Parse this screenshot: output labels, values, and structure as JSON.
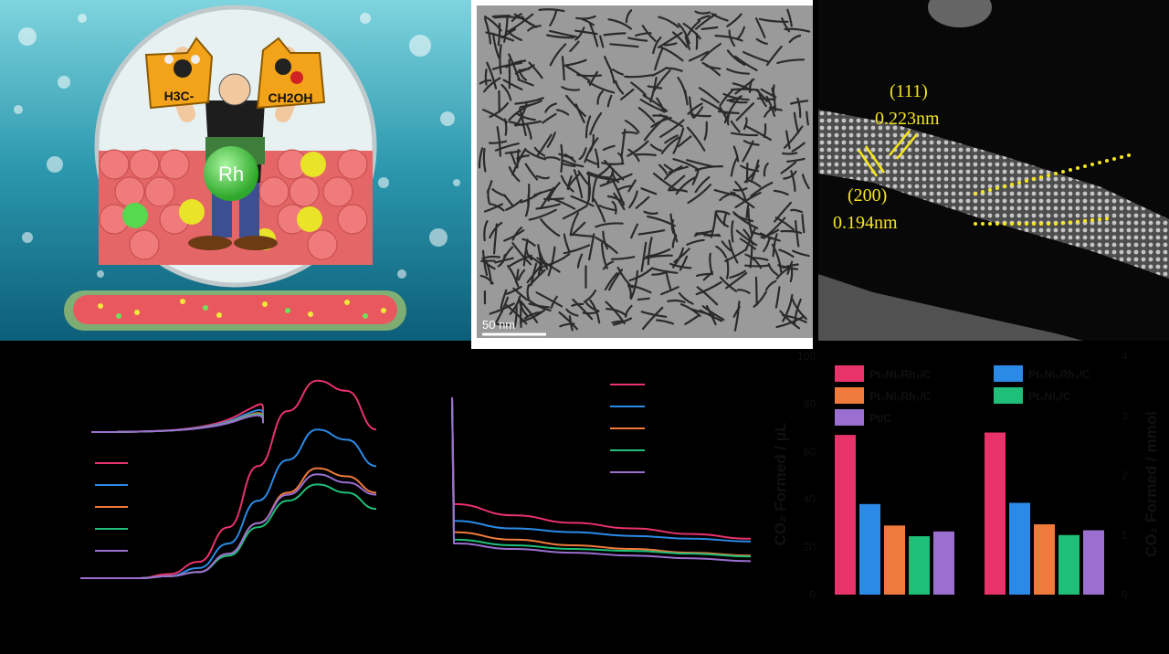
{
  "illustration": {
    "tag_left": "H3C-",
    "tag_right": "CH2OH",
    "center_label": "Rh"
  },
  "tem": {
    "scale_bar": "50 nm"
  },
  "stem": {
    "label_111": "(111)",
    "d_111": "0.223nm",
    "label_200": "(200)",
    "d_200": "0.194nm"
  },
  "colors": {
    "series1": "#e8336a",
    "series2": "#2b8ae6",
    "series3": "#f07a3c",
    "series4": "#1fbf7a",
    "series5": "#9a6fd0",
    "annotation": "#f5e61b"
  },
  "chart_data": [
    {
      "type": "line",
      "panel": "lsv",
      "series": [
        {
          "color": "series1",
          "values": [
            0,
            0,
            0,
            0.02,
            0.08,
            0.25,
            0.55,
            0.82,
            0.97,
            0.92,
            0.73
          ]
        },
        {
          "color": "series2",
          "values": [
            0,
            0,
            0,
            0.01,
            0.05,
            0.17,
            0.38,
            0.58,
            0.73,
            0.68,
            0.55
          ]
        },
        {
          "color": "series3",
          "values": [
            0,
            0,
            0,
            0.01,
            0.03,
            0.12,
            0.27,
            0.42,
            0.54,
            0.5,
            0.42
          ]
        },
        {
          "color": "series4",
          "values": [
            0,
            0,
            0,
            0.01,
            0.03,
            0.11,
            0.25,
            0.38,
            0.46,
            0.42,
            0.34
          ]
        },
        {
          "color": "series5",
          "values": [
            0,
            0,
            0,
            0.01,
            0.03,
            0.12,
            0.27,
            0.41,
            0.51,
            0.47,
            0.41
          ]
        }
      ]
    },
    {
      "type": "line",
      "panel": "chronoamperometry",
      "series": [
        {
          "color": "series1",
          "values": [
            1.0,
            0.43,
            0.37,
            0.33,
            0.3,
            0.27,
            0.245
          ]
        },
        {
          "color": "series2",
          "values": [
            1.0,
            0.34,
            0.3,
            0.28,
            0.26,
            0.245,
            0.23
          ]
        },
        {
          "color": "series3",
          "values": [
            1.0,
            0.28,
            0.24,
            0.21,
            0.19,
            0.17,
            0.155
          ]
        },
        {
          "color": "series4",
          "values": [
            1.0,
            0.24,
            0.21,
            0.19,
            0.18,
            0.165,
            0.15
          ]
        },
        {
          "color": "series5",
          "values": [
            1.0,
            0.22,
            0.19,
            0.17,
            0.155,
            0.14,
            0.125
          ]
        }
      ]
    },
    {
      "type": "bar",
      "panel": "co2",
      "ylabel_left": "CO₂ Formed / μL",
      "ylabel_right": "CO₂ Formed / mmol",
      "ylim_left": [
        0,
        100
      ],
      "ylim_right": [
        0,
        4
      ],
      "yticks_left": [
        "0",
        "20",
        "40",
        "60",
        "80",
        "100"
      ],
      "yticks_right": [
        "0",
        "1",
        "2",
        "3",
        "4"
      ],
      "legend": [
        {
          "label": "Pt₃Ni₁Rh₁/C",
          "color": "series1"
        },
        {
          "label": "Pt₃Ni₁Rh₁/C",
          "color": "series2"
        },
        {
          "label": "Pt₃Ni₁Rh₁/C",
          "color": "series3"
        },
        {
          "label": "Pt₃Ni₁/C",
          "color": "series4"
        },
        {
          "label": "Pt/C",
          "color": "series5"
        }
      ],
      "groups": [
        {
          "values": [
            67,
            38,
            29,
            24.5,
            26.5
          ]
        },
        {
          "values": [
            68,
            38.5,
            29.5,
            25,
            27
          ]
        }
      ]
    }
  ]
}
